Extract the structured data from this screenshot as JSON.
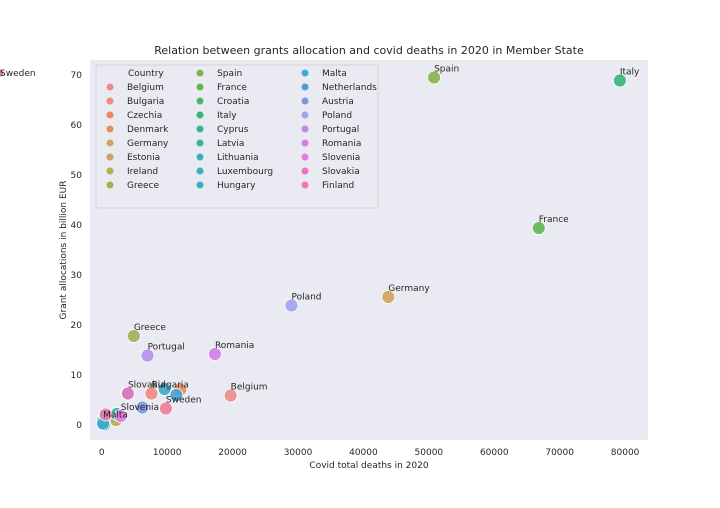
{
  "chart_data": {
    "type": "scatter",
    "title": "Relation between grants allocation and covid deaths in 2020 in Member State",
    "xlabel": "Covid total deaths in 2020",
    "ylabel": "Grant allocations in billion EUR",
    "xlim": [
      -1800,
      83500
    ],
    "ylim": [
      -3,
      73
    ],
    "xticks": [
      0,
      10000,
      20000,
      30000,
      40000,
      50000,
      60000,
      70000,
      80000
    ],
    "yticks": [
      0,
      10,
      20,
      30,
      40,
      50,
      60,
      70
    ],
    "grid": false,
    "legend_title": "Country",
    "legend_position": "top-left",
    "points": [
      {
        "country": "Belgium",
        "x": 19700,
        "y": 5.9,
        "color": "#ee8a8d",
        "label": "Belgium"
      },
      {
        "country": "Bulgaria",
        "x": 7600,
        "y": 6.3,
        "color": "#ee8b7f",
        "label": "Bulgaria"
      },
      {
        "country": "Czechia",
        "x": 12000,
        "y": 7.1,
        "color": "#e88d58",
        "label": ""
      },
      {
        "country": "Denmark",
        "x": 1300,
        "y": 1.6,
        "color": "#dd9258",
        "label": ""
      },
      {
        "country": "Germany",
        "x": 43800,
        "y": 25.6,
        "color": "#d2a45e",
        "label": "Germany"
      },
      {
        "country": "Estonia",
        "x": 200,
        "y": 1.0,
        "color": "#c6a55c",
        "label": ""
      },
      {
        "country": "Ireland",
        "x": 2200,
        "y": 1.0,
        "color": "#b7ab53",
        "label": ""
      },
      {
        "country": "Greece",
        "x": 4900,
        "y": 17.8,
        "color": "#a4ae56",
        "label": "Greece"
      },
      {
        "country": "Spain",
        "x": 50800,
        "y": 69.5,
        "color": "#86b24d",
        "label": "Spain"
      },
      {
        "country": "France",
        "x": 66800,
        "y": 39.4,
        "color": "#5fb755",
        "label": "France"
      },
      {
        "country": "Croatia",
        "x": 3900,
        "y": 6.3,
        "color": "#45b66f",
        "label": ""
      },
      {
        "country": "Italy",
        "x": 79200,
        "y": 68.9,
        "color": "#3ab37b",
        "label": "Italy"
      },
      {
        "country": "Cyprus",
        "x": 200,
        "y": 1.0,
        "color": "#3bb38a",
        "label": ""
      },
      {
        "country": "Latvia",
        "x": 500,
        "y": 1.8,
        "color": "#3bb19c",
        "label": ""
      },
      {
        "country": "Lithuania",
        "x": 2300,
        "y": 2.2,
        "color": "#39b0ab",
        "label": ""
      },
      {
        "country": "Luxembourg",
        "x": 400,
        "y": 0.1,
        "color": "#3ab0bd",
        "label": ""
      },
      {
        "country": "Hungary",
        "x": 9600,
        "y": 7.2,
        "color": "#3cacc9",
        "label": ""
      },
      {
        "country": "Malta",
        "x": 200,
        "y": 0.3,
        "color": "#3ea9d4",
        "label": "Malta"
      },
      {
        "country": "Netherlands",
        "x": 11400,
        "y": 6.0,
        "color": "#4a9fd8",
        "label": ""
      },
      {
        "country": "Austria",
        "x": 6200,
        "y": 3.5,
        "color": "#7b98df",
        "label": ""
      },
      {
        "country": "Poland",
        "x": 29000,
        "y": 23.9,
        "color": "#a0a3ef",
        "label": "Poland"
      },
      {
        "country": "Portugal",
        "x": 7000,
        "y": 13.9,
        "color": "#b88ee9",
        "label": "Portugal"
      },
      {
        "country": "Romania",
        "x": 17300,
        "y": 14.2,
        "color": "#d27fea",
        "label": "Romania"
      },
      {
        "country": "Slovenia",
        "x": 2900,
        "y": 1.8,
        "color": "#e67be0",
        "label": "Slovenia"
      },
      {
        "country": "Slovakia",
        "x": 4000,
        "y": 6.3,
        "color": "#e874c9",
        "label": "Slovakia"
      },
      {
        "country": "Finland",
        "x": 600,
        "y": 2.1,
        "color": "#ec78b5",
        "label": ""
      },
      {
        "country": "Sweden",
        "x": 9800,
        "y": 3.3,
        "color": "#ee7a9a",
        "label": "Sweden"
      }
    ]
  }
}
